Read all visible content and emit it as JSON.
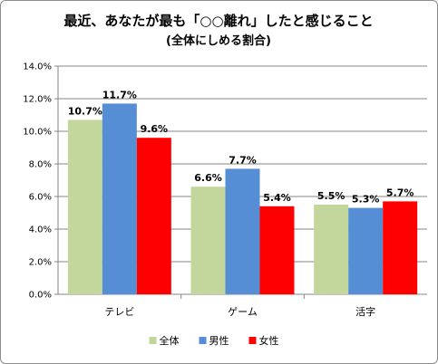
{
  "chart_data": {
    "type": "bar",
    "title": "最近、あなたが最も「○○離れ」したと感じること",
    "subtitle": "(全体にしめる割合)",
    "categories": [
      "テレビ",
      "ゲーム",
      "活字"
    ],
    "series": [
      {
        "name": "全体",
        "color": "#c3d69b",
        "values": [
          10.7,
          6.6,
          5.5
        ],
        "labels": [
          "10.7%",
          "6.6%",
          "5.5%"
        ]
      },
      {
        "name": "男性",
        "color": "#558ed5",
        "values": [
          11.7,
          7.7,
          5.3
        ],
        "labels": [
          "11.7%",
          "7.7%",
          "5.3%"
        ]
      },
      {
        "name": "女性",
        "color": "#ff0000",
        "values": [
          9.6,
          5.4,
          5.7
        ],
        "labels": [
          "9.6%",
          "5.4%",
          "5.7%"
        ]
      }
    ],
    "ylim": [
      0,
      14
    ],
    "yticks": [
      "0.0%",
      "2.0%",
      "4.0%",
      "6.0%",
      "8.0%",
      "10.0%",
      "12.0%",
      "14.0%"
    ],
    "grid": true,
    "legend": "bottom",
    "xlabel": "",
    "ylabel": ""
  }
}
